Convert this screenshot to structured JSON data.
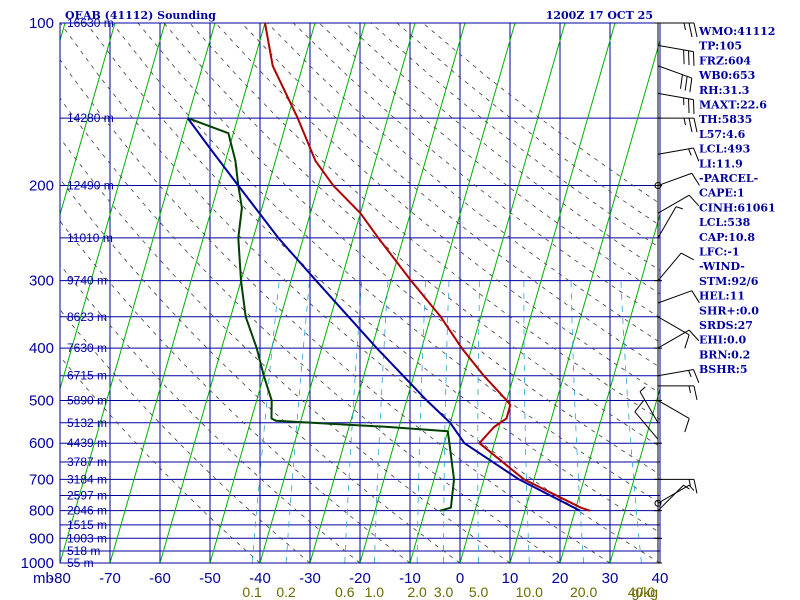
{
  "chart_data": {
    "type": "skew-t log-p sounding",
    "title": "OEAB (41112) Sounding",
    "time_label": "1200Z 17 OCT 25",
    "x_axis_unit_label": "mb",
    "pressure_levels": [
      100,
      200,
      300,
      400,
      500,
      600,
      700,
      800,
      900,
      1000
    ],
    "temperature_ticks": [
      -80,
      -70,
      -60,
      -50,
      -40,
      -30,
      -20,
      -10,
      0,
      10,
      20,
      30,
      40
    ],
    "mixing_ratio_labels": [
      "0.1",
      "0.2",
      "0.6",
      "1.0",
      "2.0",
      "3.0",
      "5.0",
      "10.0",
      "20.0",
      "40.0"
    ],
    "mixing_ratio_unit": "g/kg",
    "mixing_ratio_values": [
      0.1,
      0.2,
      0.6,
      1.0,
      2.0,
      3.0,
      5.0,
      10.0,
      20.0,
      40.0
    ],
    "height_labels": [
      {
        "p": 100,
        "label": "16630 m"
      },
      {
        "p": 150,
        "label": "14280 m"
      },
      {
        "p": 200,
        "label": "12490 m"
      },
      {
        "p": 250,
        "label": "11010 m"
      },
      {
        "p": 300,
        "label": "9740 m"
      },
      {
        "p": 350,
        "label": "8623 m"
      },
      {
        "p": 400,
        "label": "7630 m"
      },
      {
        "p": 450,
        "label": "6715 m"
      },
      {
        "p": 500,
        "label": "5890 m"
      },
      {
        "p": 550,
        "label": "5132 m"
      },
      {
        "p": 600,
        "label": "4439 m"
      },
      {
        "p": 650,
        "label": "3787 m"
      },
      {
        "p": 700,
        "label": "3184 m"
      },
      {
        "p": 750,
        "label": "2597 m"
      },
      {
        "p": 800,
        "label": "2046 m"
      },
      {
        "p": 850,
        "label": "1515 m"
      },
      {
        "p": 900,
        "label": "1003 m"
      },
      {
        "p": 950,
        "label": "518 m"
      },
      {
        "p": 1000,
        "label": "55 m"
      }
    ],
    "series": [
      {
        "name": "Temperature",
        "color": "#b00000",
        "points": [
          [
            800,
            23
          ],
          [
            790,
            21
          ],
          [
            700,
            8
          ],
          [
            600,
            -3
          ],
          [
            560,
            -1
          ],
          [
            540,
            1
          ],
          [
            510,
            1
          ],
          [
            500,
            0
          ],
          [
            450,
            -6
          ],
          [
            400,
            -12
          ],
          [
            350,
            -18
          ],
          [
            300,
            -26
          ],
          [
            250,
            -35
          ],
          [
            225,
            -40
          ],
          [
            200,
            -47
          ],
          [
            180,
            -52
          ],
          [
            150,
            -58
          ],
          [
            120,
            -66
          ],
          [
            100,
            -70
          ]
        ]
      },
      {
        "name": "Dewpoint",
        "color": "#004000",
        "points": [
          [
            800,
            -7
          ],
          [
            790,
            -5
          ],
          [
            700,
            -6
          ],
          [
            600,
            -9
          ],
          [
            570,
            -10
          ],
          [
            560,
            -22
          ],
          [
            545,
            -45
          ],
          [
            540,
            -46
          ],
          [
            500,
            -47
          ],
          [
            450,
            -50
          ],
          [
            400,
            -53
          ],
          [
            350,
            -57
          ],
          [
            300,
            -60
          ],
          [
            250,
            -63
          ],
          [
            220,
            -64
          ],
          [
            200,
            -66
          ],
          [
            180,
            -68
          ],
          [
            160,
            -71
          ],
          [
            150,
            -80
          ]
        ]
      },
      {
        "name": "Parcel",
        "color": "#0000a0",
        "points": [
          [
            800,
            21
          ],
          [
            700,
            7
          ],
          [
            600,
            -6
          ],
          [
            550,
            -10
          ],
          [
            500,
            -16
          ],
          [
            400,
            -29
          ],
          [
            300,
            -45
          ],
          [
            250,
            -55
          ],
          [
            200,
            -66
          ],
          [
            170,
            -74
          ],
          [
            150,
            -80
          ]
        ]
      }
    ],
    "wind_barbs": [
      {
        "p": 100,
        "dir": 90,
        "spd": 25
      },
      {
        "p": 110,
        "dir": 100,
        "spd": 30
      },
      {
        "p": 120,
        "dir": 110,
        "spd": 30
      },
      {
        "p": 135,
        "dir": 100,
        "spd": 25
      },
      {
        "p": 150,
        "dir": 90,
        "spd": 25
      },
      {
        "p": 175,
        "dir": 80,
        "spd": 15
      },
      {
        "p": 200,
        "dir": 70,
        "spd": 10
      },
      {
        "p": 225,
        "dir": 60,
        "spd": 10
      },
      {
        "p": 250,
        "dir": 30,
        "spd": 5
      },
      {
        "p": 300,
        "dir": 40,
        "spd": 10
      },
      {
        "p": 330,
        "dir": 70,
        "spd": 10
      },
      {
        "p": 350,
        "dir": 120,
        "spd": 10
      },
      {
        "p": 400,
        "dir": 60,
        "spd": 10
      },
      {
        "p": 450,
        "dir": 80,
        "spd": 15
      },
      {
        "p": 470,
        "dir": 90,
        "spd": 15
      },
      {
        "p": 500,
        "dir": 120,
        "spd": 10
      },
      {
        "p": 550,
        "dir": 330,
        "spd": 5
      },
      {
        "p": 590,
        "dir": 320,
        "spd": 10
      },
      {
        "p": 700,
        "dir": 90,
        "spd": 15
      },
      {
        "p": 775,
        "dir": 60,
        "spd": 5
      },
      {
        "p": 800,
        "dir": 45,
        "spd": 5
      }
    ],
    "stats": [
      {
        "label": "WMO:41112"
      },
      {
        "label": "TP:105"
      },
      {
        "label": "FRZ:604"
      },
      {
        "label": "WB0:653"
      },
      {
        "label": "RH:31.3"
      },
      {
        "label": "MAXT:22.6"
      },
      {
        "label": "TH:5835"
      },
      {
        "label": "L57:4.6"
      },
      {
        "label": "LCL:493"
      },
      {
        "label": "LI:11.9"
      },
      {
        "label": "-PARCEL-"
      },
      {
        "label": "CAPE:1"
      },
      {
        "label": "CINH:61061"
      },
      {
        "label": "LCL:538"
      },
      {
        "label": "CAP:10.8"
      },
      {
        "label": "LFC:-1"
      },
      {
        "label": "-WIND-"
      },
      {
        "label": "STM:92/6"
      },
      {
        "label": "HEL:11"
      },
      {
        "label": "SHR+:0.0"
      },
      {
        "label": "SRDS:27"
      },
      {
        "label": "EHI:0.0"
      },
      {
        "label": "BRN:0.2"
      },
      {
        "label": "BSHR:5"
      }
    ],
    "colors": {
      "isobar": "#0000a0",
      "isotherm": "#00b000",
      "dry_adiabat": "#404040",
      "mixing_ratio": "#30a0d0",
      "temperature": "#b00000",
      "dewpoint": "#004000",
      "parcel": "#0000a0",
      "wind": "#000000",
      "mixing_label": "#6b6b00"
    }
  }
}
